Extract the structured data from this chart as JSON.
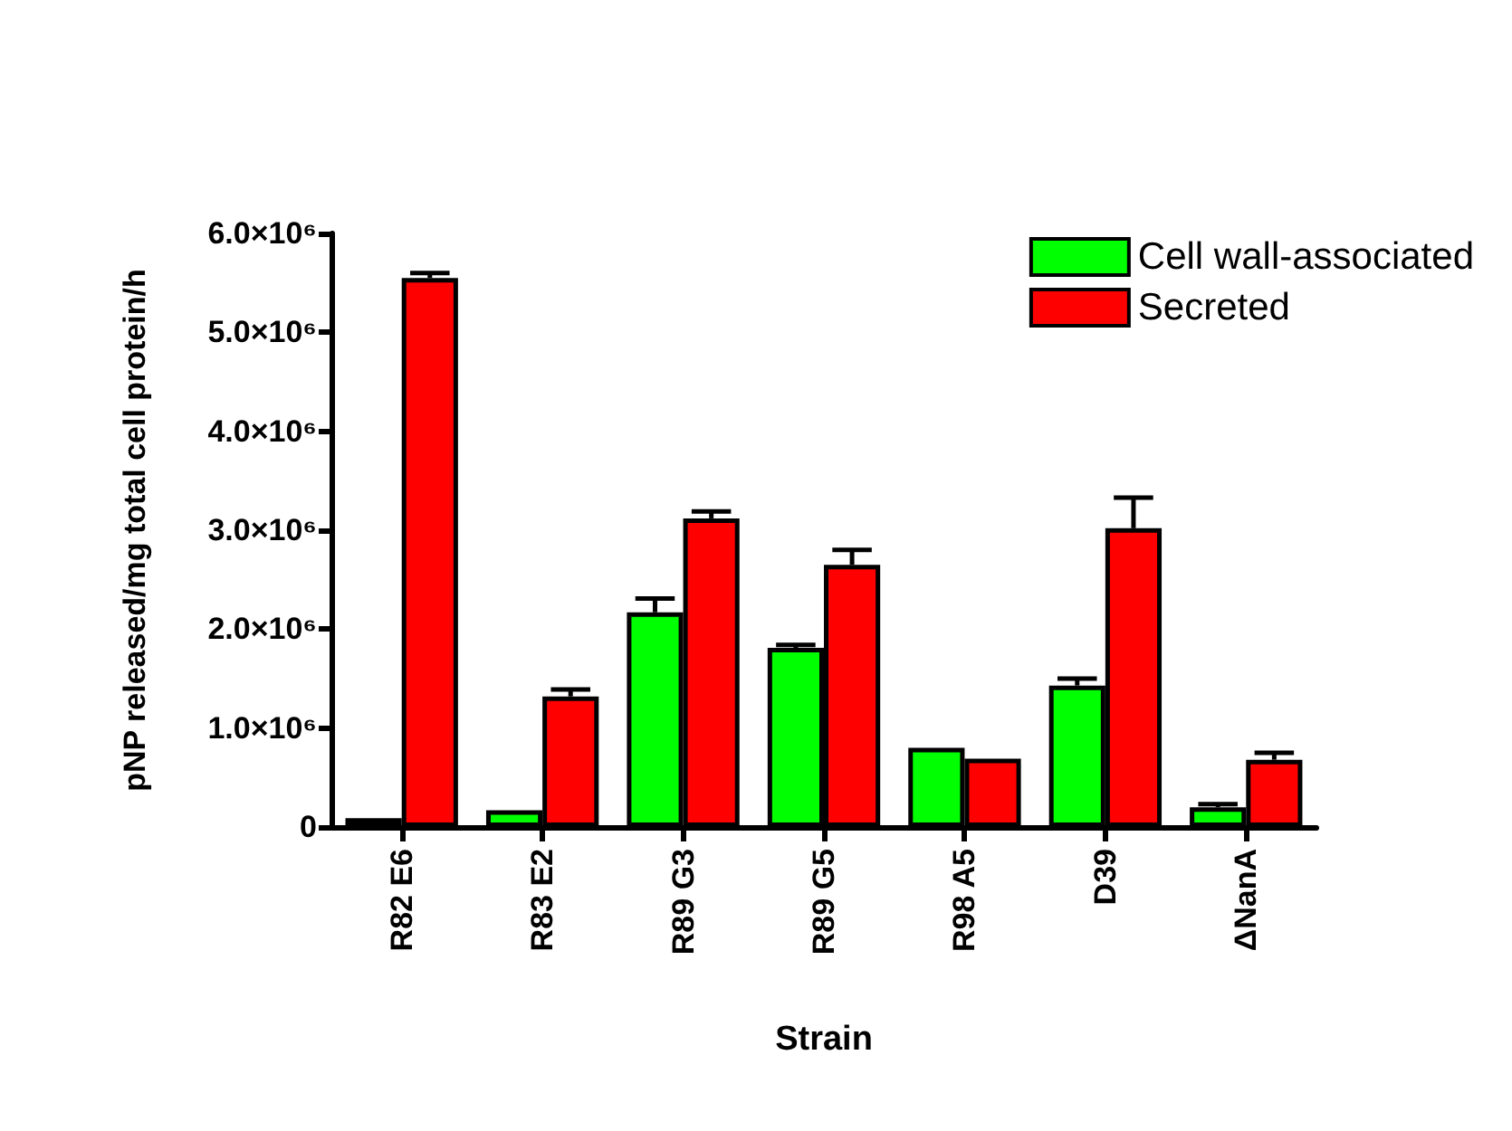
{
  "chart_data": {
    "type": "bar",
    "xlabel": "Strain",
    "ylabel": "pNP released/mg total cell protein/h",
    "categories": [
      "R82 E6",
      "R83 E2",
      "R89 G3",
      "R89 G5",
      "R98 A5",
      "D39",
      "ΔNanA"
    ],
    "series": [
      {
        "name": "Cell wall-associated",
        "color": "#00ff00",
        "values": [
          90000,
          170000,
          2170000,
          1810000,
          800000,
          1430000,
          200000
        ],
        "errors": [
          null,
          null,
          140000,
          30000,
          null,
          70000,
          30000
        ]
      },
      {
        "name": "Secreted",
        "color": "#ff0000",
        "values": [
          5550000,
          1320000,
          3120000,
          2650000,
          690000,
          3020000,
          680000
        ],
        "errors": [
          50000,
          70000,
          70000,
          150000,
          null,
          310000,
          70000
        ]
      }
    ],
    "ylim": [
      0,
      6000000
    ],
    "yticks": [
      0,
      {
        "value": 1000000,
        "label": "1.0×10⁶"
      },
      {
        "value": 2000000,
        "label": "2.0×10⁶"
      },
      {
        "value": 3000000,
        "label": "3.0×10⁶"
      },
      {
        "value": 4000000,
        "label": "4.0×10⁶"
      },
      {
        "value": 5000000,
        "label": "5.0×10⁶"
      },
      {
        "value": 6000000,
        "label": "6.0×10⁶"
      }
    ],
    "legend": "top right",
    "grid": false
  }
}
